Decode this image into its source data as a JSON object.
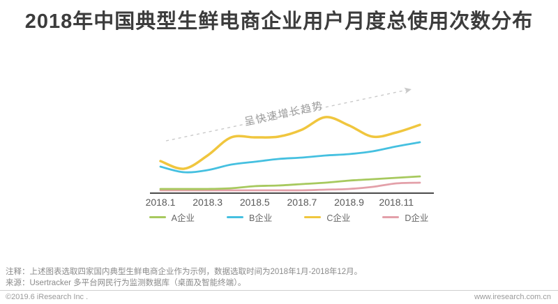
{
  "page": {
    "title": "2018年中国典型生鲜电商企业用户月度总使用次数分布",
    "notes": {
      "line1": "注释：上述图表选取四家国内典型生鲜电商企业作为示例，数据选取时间为2018年1月-2018年12月。",
      "line2": "来源：Usertracker 多平台网民行为监测数据库（桌面及智能终端）。"
    },
    "footer": {
      "left": "©2019.6 iResearch Inc .",
      "right": "www.iresearch.com.cn"
    }
  },
  "colors": {
    "title": "#3c3c3c",
    "axis": "#4a4a4a",
    "tick_label": "#595959",
    "legend_text": "#666666",
    "note_text": "#8a8a8a",
    "footer_text": "#9a9a9a",
    "arrow": "#c9c9c9",
    "annotation_text": "#9a9a9a"
  },
  "chart_data": {
    "type": "line",
    "title": "2018年中国典型生鲜电商企业用户月度总使用次数分布",
    "xlabel": "",
    "ylabel": "",
    "y_axis_visible": false,
    "grid": false,
    "ylim": [
      0,
      120
    ],
    "legend_position": "bottom",
    "categories": [
      "2018.1",
      "2018.2",
      "2018.3",
      "2018.4",
      "2018.5",
      "2018.6",
      "2018.7",
      "2018.8",
      "2018.9",
      "2018.10",
      "2018.11",
      "2018.12"
    ],
    "x_tick_labels": [
      "2018.1",
      "2018.3",
      "2018.5",
      "2018.7",
      "2018.9",
      "2018.11"
    ],
    "series": [
      {
        "name": "A企业",
        "color": "#a7c95e",
        "values": [
          6,
          6,
          6,
          7,
          10,
          11,
          13,
          15,
          18,
          20,
          22,
          24
        ]
      },
      {
        "name": "B企业",
        "color": "#45c0e0",
        "values": [
          38,
          30,
          33,
          41,
          45,
          49,
          51,
          54,
          56,
          60,
          67,
          73
        ]
      },
      {
        "name": "C企业",
        "color": "#f0c63e",
        "values": [
          46,
          35,
          54,
          80,
          80,
          81,
          91,
          109,
          97,
          81,
          87,
          98
        ]
      },
      {
        "name": "D企业",
        "color": "#e3a0a9",
        "values": [
          4,
          4,
          4,
          4,
          4,
          4,
          4,
          5,
          6,
          9,
          14,
          15
        ]
      }
    ],
    "annotation": {
      "text": "呈快速增长趋势",
      "style": "dashed-arrow-up-right"
    }
  }
}
